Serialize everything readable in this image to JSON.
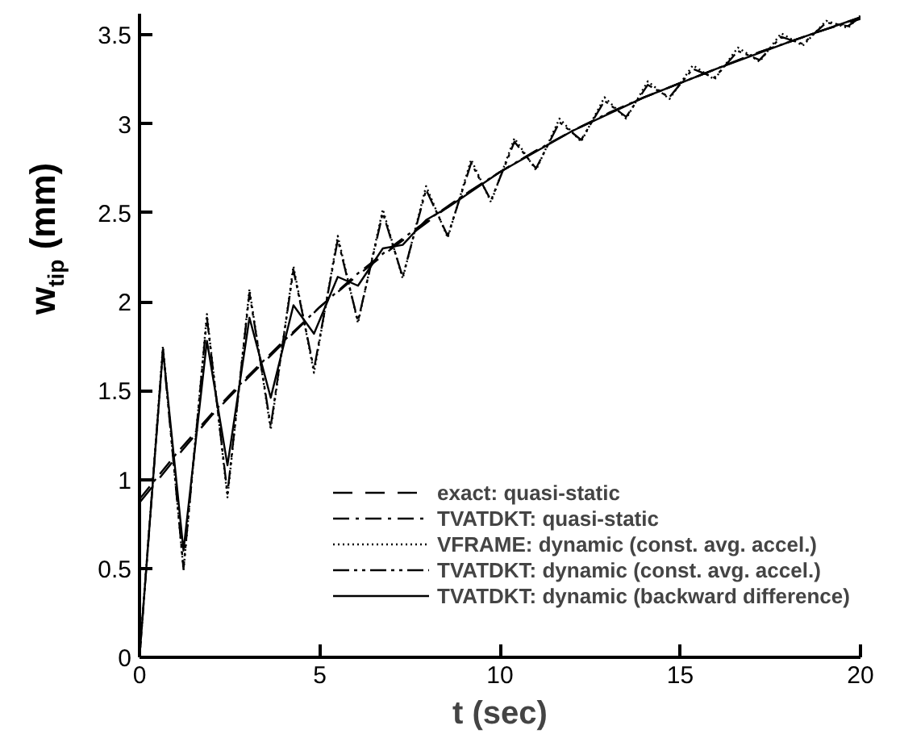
{
  "chart_data": {
    "type": "line",
    "xlabel": "t (sec)",
    "ylabel": "w$_{tip}$ (mm)",
    "xlim": [
      0,
      20
    ],
    "ylim": [
      0,
      3.62
    ],
    "xticks": [
      0,
      5,
      10,
      15,
      20
    ],
    "yticks": [
      0,
      0.5,
      1,
      1.5,
      2,
      2.5,
      3,
      3.5
    ],
    "grid": false,
    "legend": "bottom right",
    "series": [
      {
        "name": "exact: quasi-static",
        "color": "#000000",
        "line_style": "dashed",
        "x": [
          0,
          1,
          2,
          3,
          4,
          5,
          6,
          7,
          8,
          9,
          10,
          11,
          12,
          13,
          14,
          15,
          16,
          17,
          18,
          19,
          20
        ],
        "values": [
          0.87,
          1.12,
          1.36,
          1.57,
          1.77,
          1.97,
          2.14,
          2.3,
          2.45,
          2.6,
          2.73,
          2.85,
          2.96,
          3.06,
          3.15,
          3.23,
          3.31,
          3.39,
          3.46,
          3.53,
          3.6
        ]
      },
      {
        "name": "TVATDKT: quasi-static",
        "color": "#000000",
        "line_style": "dashdot",
        "x": [
          0,
          1,
          2,
          3,
          4,
          5,
          6,
          7,
          8,
          9,
          10,
          11,
          12,
          13,
          14,
          15,
          16,
          17,
          18,
          19,
          20
        ],
        "values": [
          0.89,
          1.14,
          1.37,
          1.58,
          1.78,
          1.97,
          2.15,
          2.31,
          2.46,
          2.6,
          2.73,
          2.85,
          2.96,
          3.06,
          3.15,
          3.23,
          3.31,
          3.39,
          3.46,
          3.53,
          3.59
        ]
      },
      {
        "name": "VFRAME: dynamic (const. avg. accel.)",
        "color": "#000000",
        "line_style": "dotted",
        "x": [
          0,
          0.65,
          1.22,
          1.87,
          2.44,
          3.05,
          3.64,
          4.27,
          4.84,
          5.5,
          6.06,
          6.75,
          7.3,
          7.95,
          8.55,
          9.2,
          9.75,
          10.4,
          11.0,
          11.65,
          12.25,
          12.9,
          13.5,
          14.1,
          14.7,
          15.35,
          15.95,
          16.6,
          17.2,
          17.8,
          18.4,
          19.05,
          19.65,
          20
        ],
        "values": [
          0,
          1.75,
          0.49,
          1.93,
          0.9,
          2.07,
          1.28,
          2.2,
          1.6,
          2.37,
          1.88,
          2.52,
          2.13,
          2.65,
          2.36,
          2.8,
          2.56,
          2.92,
          2.74,
          3.03,
          2.9,
          3.15,
          3.03,
          3.24,
          3.14,
          3.33,
          3.25,
          3.43,
          3.35,
          3.51,
          3.44,
          3.58,
          3.54,
          3.61
        ]
      },
      {
        "name": "TVATDKT: dynamic (const. avg. accel.)",
        "color": "#000000",
        "line_style": "dashdotdot",
        "x": [
          0,
          0.65,
          1.22,
          1.87,
          2.44,
          3.05,
          3.64,
          4.27,
          4.84,
          5.5,
          6.06,
          6.75,
          7.3,
          7.95,
          8.55,
          9.2,
          9.75,
          10.4,
          11.0,
          11.65,
          12.25,
          12.9,
          13.5,
          14.1,
          14.7,
          15.35,
          15.95,
          16.6,
          17.2,
          17.8,
          18.4,
          19.05,
          19.65,
          20
        ],
        "values": [
          0,
          1.73,
          0.5,
          1.91,
          0.92,
          2.05,
          1.3,
          2.18,
          1.62,
          2.35,
          1.89,
          2.5,
          2.14,
          2.63,
          2.37,
          2.78,
          2.57,
          2.9,
          2.75,
          3.01,
          2.91,
          3.13,
          3.04,
          3.22,
          3.15,
          3.31,
          3.26,
          3.41,
          3.36,
          3.49,
          3.45,
          3.57,
          3.55,
          3.6
        ]
      },
      {
        "name": "TVATDKT: dynamic (backward difference)",
        "color": "#000000",
        "line_style": "solid",
        "x": [
          0,
          0.65,
          1.22,
          1.87,
          2.44,
          3.05,
          3.64,
          4.27,
          4.84,
          5.5,
          6.06,
          6.75,
          7.3,
          7.95,
          8.55,
          10,
          12,
          14,
          16,
          18,
          20
        ],
        "values": [
          0,
          1.73,
          0.6,
          1.78,
          1.08,
          1.91,
          1.46,
          1.98,
          1.82,
          2.14,
          2.09,
          2.3,
          2.32,
          2.46,
          2.53,
          2.73,
          2.96,
          3.15,
          3.31,
          3.46,
          3.6
        ]
      }
    ]
  }
}
